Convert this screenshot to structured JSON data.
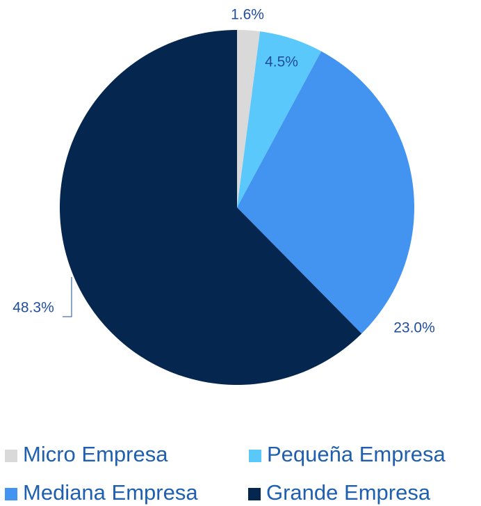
{
  "chart_data": {
    "type": "pie",
    "categories": [
      "Micro Empresa",
      "Pequeña Empresa",
      "Mediana Empresa",
      "Grande Empresa"
    ],
    "values": [
      1.6,
      4.5,
      23.0,
      48.3
    ],
    "value_labels": [
      "1.6%",
      "4.5%",
      "23.0%",
      "48.3%"
    ],
    "colors": [
      "#d9d9d9",
      "#5bc8fb",
      "#4394f0",
      "#05264f"
    ],
    "legend": "bottom"
  }
}
